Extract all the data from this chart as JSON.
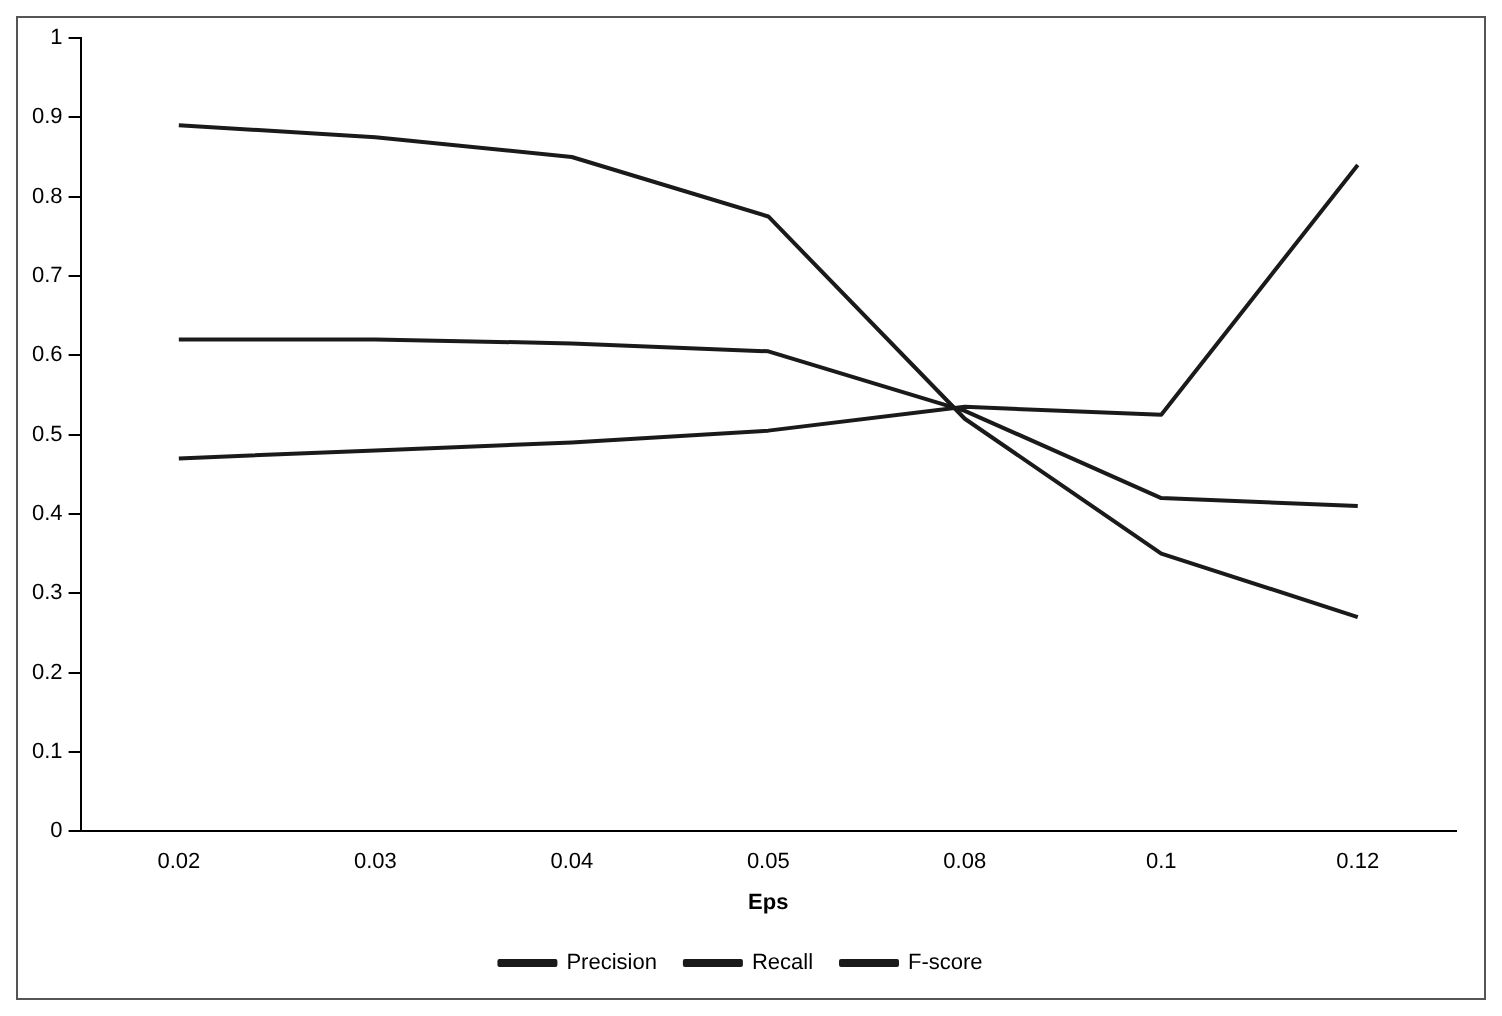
{
  "chart_data": {
    "type": "line",
    "xlabel": "Eps",
    "categories": [
      "0.02",
      "0.03",
      "0.04",
      "0.05",
      "0.08",
      "0.1",
      "0.12"
    ],
    "series": [
      {
        "name": "Precision",
        "color": "#1a1a1a",
        "values": [
          0.47,
          0.48,
          0.49,
          0.505,
          0.535,
          0.525,
          0.84
        ]
      },
      {
        "name": "Recall",
        "color": "#1a1a1a",
        "values": [
          0.89,
          0.875,
          0.85,
          0.775,
          0.52,
          0.35,
          0.27
        ]
      },
      {
        "name": "F-score",
        "color": "#1a1a1a",
        "values": [
          0.62,
          0.62,
          0.615,
          0.605,
          0.53,
          0.42,
          0.41
        ]
      }
    ],
    "ylim": [
      0,
      1
    ],
    "yticks": [
      0,
      0.1,
      0.2,
      0.3,
      0.4,
      0.5,
      0.6,
      0.7,
      0.8,
      0.9,
      1
    ],
    "grid": false,
    "legend": "bottom",
    "marker": "none",
    "line_style": "solid"
  }
}
